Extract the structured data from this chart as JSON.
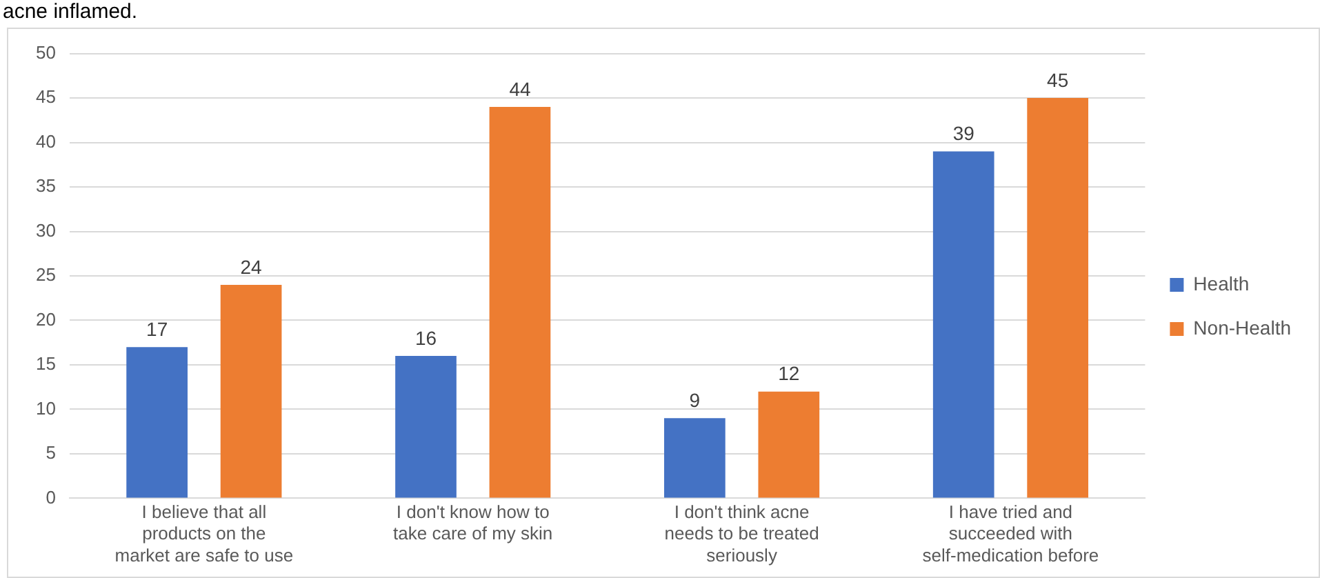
{
  "chart_data": {
    "type": "bar",
    "annotations": [
      "acne inflamed."
    ],
    "categories": [
      "I believe that all products on the market are safe to use",
      "I don't know how to take care of my skin",
      "I don't think acne needs to be treated seriously",
      "I have tried and succeeded with self-medication before"
    ],
    "series": [
      {
        "name": "Health",
        "color": "#4472c4",
        "values": [
          17,
          16,
          9,
          39
        ]
      },
      {
        "name": "Non-Health",
        "color": "#ed7d31",
        "values": [
          24,
          44,
          12,
          45
        ]
      }
    ],
    "ylim": [
      0,
      50
    ],
    "yticks": [
      0,
      5,
      10,
      15,
      20,
      25,
      30,
      35,
      40,
      45,
      50
    ],
    "grid": "y",
    "legend": "right",
    "data_labels": true
  }
}
